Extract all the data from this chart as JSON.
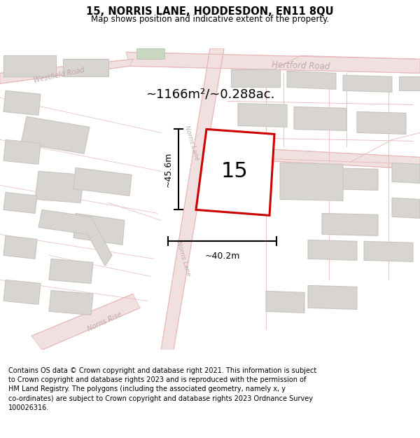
{
  "title": "15, NORRIS LANE, HODDESDON, EN11 8QU",
  "subtitle": "Map shows position and indicative extent of the property.",
  "footer": "Contains OS data © Crown copyright and database right 2021. This information is subject\nto Crown copyright and database rights 2023 and is reproduced with the permission of\nHM Land Registry. The polygons (including the associated geometry, namely x, y\nco-ordinates) are subject to Crown copyright and database rights 2023 Ordnance Survey\n100026316.",
  "map_bg": "#f7f5f2",
  "road_line_color": "#e8b8b8",
  "road_fill_color": "#f0e0e0",
  "building_fill": "#d8d5d0",
  "building_edge": "#c8c5c0",
  "highlight_fill": "#ffffff",
  "highlight_edge": "#cc0000",
  "road_label_color": "#c0a8a8",
  "green_fill": "#c8d8c0",
  "area_text": "~1166m²/~0.288ac.",
  "property_number": "15",
  "dim_height": "~45.6m",
  "dim_width": "~40.2m",
  "title_fontsize": 10.5,
  "subtitle_fontsize": 8.5,
  "footer_fontsize": 7.0,
  "road_label_fontsize": 8.5,
  "road_label_fontsize_sm": 7.0
}
